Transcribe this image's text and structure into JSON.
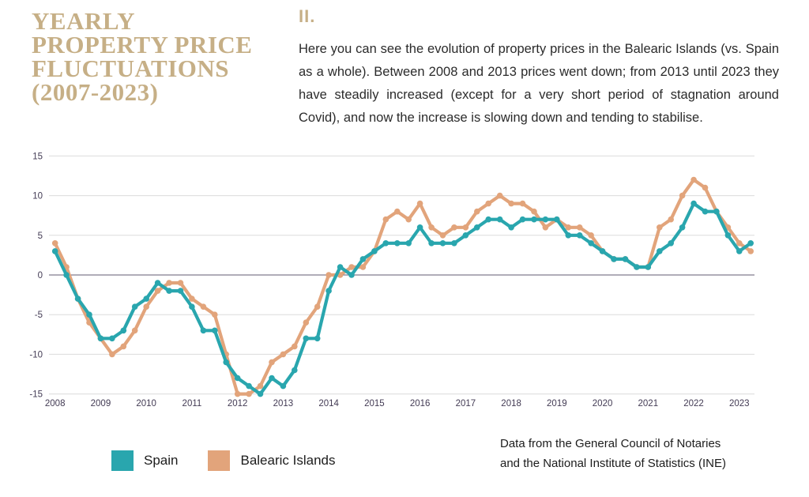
{
  "palette": {
    "title_color": "#c6af86",
    "text_color": "#2b2b2b",
    "axis_label_color": "#433b54",
    "grid_color": "#dcdcdc",
    "zero_line_color": "#615b71"
  },
  "title": {
    "line1": "YEARLY",
    "line2": "PROPERTY PRICE",
    "line3": "FLUCTUATIONS",
    "line4": "(2007-2023)"
  },
  "intro": {
    "numeral": "II.",
    "text": "Here you can see the evolution of property prices in the Balearic Islands (vs. Spain as a whole). Between 2008 and 2013 prices went down; from 2013 until 2023 they have steadily increased (except for a very short period of stagnation around Covid), and now the increase is slowing down and tending to stabilise."
  },
  "legend": {
    "items": [
      {
        "label": "Spain",
        "color": "#29a6ae"
      },
      {
        "label": "Balearic Islands",
        "color": "#e2a47b"
      }
    ]
  },
  "source": {
    "line1": "Data from the General Council of Notaries",
    "line2": "and the National Institute of Statistics (INE)"
  },
  "chart_data": {
    "type": "line",
    "frequency": "quarterly",
    "x_start": "2008 Q1",
    "x_end": "2023 Q2",
    "x_labels": [
      "2008",
      "2009",
      "2010",
      "2011",
      "2012",
      "2013",
      "2014",
      "2015",
      "2016",
      "2017",
      "2018",
      "2019",
      "2020",
      "2021",
      "2022",
      "2023"
    ],
    "y_ticks": [
      15,
      10,
      5,
      0,
      -5,
      -10,
      -15
    ],
    "ylim": [
      -15,
      15
    ],
    "grid": true,
    "legend_position": "bottom-left",
    "series": [
      {
        "name": "Balearic Islands",
        "color": "#e2a47b",
        "values": [
          4,
          1,
          -3,
          -6,
          -8,
          -10,
          -9,
          -7,
          -4,
          -2,
          -1,
          -1,
          -3,
          -4,
          -5,
          -10,
          -15,
          -15,
          -14,
          -11,
          -10,
          -9,
          -6,
          -4,
          0,
          0,
          1,
          1,
          3,
          7,
          8,
          7,
          9,
          6,
          5,
          6,
          6,
          8,
          9,
          10,
          9,
          9,
          8,
          6,
          7,
          6,
          6,
          5,
          3,
          2,
          2,
          1,
          1,
          6,
          7,
          10,
          12,
          11,
          8,
          6,
          4,
          3
        ]
      },
      {
        "name": "Spain",
        "color": "#29a6ae",
        "values": [
          3,
          0,
          -3,
          -5,
          -8,
          -8,
          -7,
          -4,
          -3,
          -1,
          -2,
          -2,
          -4,
          -7,
          -7,
          -11,
          -13,
          -14,
          -15,
          -13,
          -14,
          -12,
          -8,
          -8,
          -2,
          1,
          0,
          2,
          3,
          4,
          4,
          4,
          6,
          4,
          4,
          4,
          5,
          6,
          7,
          7,
          6,
          7,
          7,
          7,
          7,
          5,
          5,
          4,
          3,
          2,
          2,
          1,
          1,
          3,
          4,
          6,
          9,
          8,
          8,
          5,
          3,
          4
        ]
      }
    ]
  }
}
